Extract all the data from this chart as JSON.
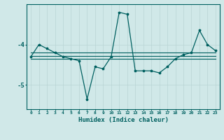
{
  "xlabel": "Humidex (Indice chaleur)",
  "x": [
    0,
    1,
    2,
    3,
    4,
    5,
    6,
    7,
    8,
    9,
    10,
    11,
    12,
    13,
    14,
    15,
    16,
    17,
    18,
    19,
    20,
    21,
    22,
    23
  ],
  "line1": [
    -4.3,
    -4.0,
    -4.1,
    -4.2,
    -4.3,
    -4.35,
    -4.4,
    -5.35,
    -4.55,
    -4.6,
    -4.3,
    -3.2,
    -3.25,
    -4.65,
    -4.65,
    -4.65,
    -4.7,
    -4.55,
    -4.35,
    -4.25,
    -4.2,
    -3.65,
    -4.0,
    -4.15
  ],
  "line2": [
    -4.2,
    -4.2,
    -4.2,
    -4.2,
    -4.2,
    -4.2,
    -4.2,
    -4.2,
    -4.2,
    -4.2,
    -4.2,
    -4.2,
    -4.2,
    -4.2,
    -4.2,
    -4.2,
    -4.2,
    -4.2,
    -4.2,
    -4.2,
    -4.2,
    -4.2,
    -4.2,
    -4.2
  ],
  "line3": [
    -4.28,
    -4.28,
    -4.28,
    -4.28,
    -4.28,
    -4.28,
    -4.28,
    -4.28,
    -4.28,
    -4.28,
    -4.28,
    -4.28,
    -4.28,
    -4.28,
    -4.28,
    -4.28,
    -4.28,
    -4.28,
    -4.28,
    -4.28,
    -4.28,
    -4.28,
    -4.28,
    -4.28
  ],
  "line4": [
    -4.36,
    -4.36,
    -4.36,
    -4.36,
    -4.36,
    -4.36,
    -4.36,
    -4.36,
    -4.36,
    -4.36,
    -4.36,
    -4.36,
    -4.36,
    -4.36,
    -4.36,
    -4.36,
    -4.36,
    -4.36,
    -4.36,
    -4.36,
    -4.36,
    -4.36,
    -4.36,
    -4.36
  ],
  "line_color": "#006060",
  "bg_color": "#d0e8e8",
  "grid_color": "#b8d4d4",
  "ylim": [
    -5.6,
    -3.0
  ],
  "yticks": [
    -5,
    -4
  ],
  "xlim": [
    -0.5,
    23.5
  ]
}
